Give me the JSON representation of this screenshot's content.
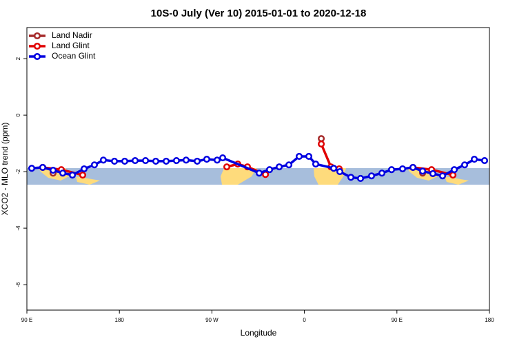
{
  "chart_data": {
    "type": "line",
    "title": "10S-0 July (Ver 10)   2015-01-01 to 2020-12-18",
    "x_label": "Longitude",
    "y_label": "XCO2 - MLO trend (ppm)",
    "xlim": [
      90,
      540
    ],
    "xticks": [
      {
        "value": 90,
        "label": "90 E"
      },
      180,
      {
        "value": 270,
        "label": "90 W"
      },
      {
        "value": 360,
        "label": "0"
      },
      {
        "value": 450,
        "label": "90 E"
      },
      {
        "value": 540,
        "label": "180"
      }
    ],
    "ylim": [
      -6.9,
      3.1
    ],
    "yticks": [
      2,
      0,
      -2,
      -4,
      -6
    ],
    "legend": "upper left",
    "series": [
      {
        "name": "Land Nadir",
        "color": "#a52a2a",
        "x": [
          115.5,
          null,
          376.4,
          null,
          475.0
        ],
        "values": [
          -2.05,
          null,
          -0.83,
          null,
          -2.05
        ]
      },
      {
        "name": "Land Glint",
        "color": "#e00000",
        "x": [
          105.4,
          123.5,
          144.3,
          null,
          284.5,
          295.2,
          304.6,
          322.1,
          null,
          376.4,
          385.8,
          393.8,
          null,
          465.6,
          483.7,
          504.5
        ],
        "values": [
          -1.85,
          -1.93,
          -2.12,
          null,
          -1.83,
          -1.73,
          -1.83,
          -2.1,
          null,
          -1.02,
          -1.83,
          -1.9,
          null,
          -1.85,
          -1.93,
          -2.12
        ]
      },
      {
        "name": "Ocean Glint",
        "color": "#0000e0",
        "x": [
          94.7,
          105.4,
          115.5,
          124.9,
          134.3,
          145.7,
          155.7,
          164.4,
          175.2,
          185.2,
          195.3,
          205.4,
          215.4,
          225.5,
          235.5,
          244.9,
          255.7,
          265.0,
          275.1,
          280.5,
          316.0,
          326.1,
          335.5,
          344.9,
          354.9,
          364.3,
          371.0,
          388.5,
          394.5,
          405.2,
          414.6,
          425.3,
          435.4,
          444.8,
          455.5,
          465.6,
          475.0,
          485.0,
          494.4,
          505.8,
          515.9,
          525.3,
          535.3
        ],
        "values": [
          -1.88,
          -1.85,
          -1.95,
          -2.05,
          -2.12,
          -1.9,
          -1.76,
          -1.59,
          -1.63,
          -1.63,
          -1.61,
          -1.61,
          -1.63,
          -1.63,
          -1.61,
          -1.59,
          -1.63,
          -1.56,
          -1.59,
          -1.51,
          -2.05,
          -1.93,
          -1.83,
          -1.76,
          -1.46,
          -1.46,
          -1.73,
          -1.88,
          -2.0,
          -2.2,
          -2.24,
          -2.15,
          -2.05,
          -1.93,
          -1.9,
          -1.85,
          -1.98,
          -2.07,
          -2.15,
          -1.93,
          -1.76,
          -1.56,
          -1.61
        ]
      }
    ]
  }
}
